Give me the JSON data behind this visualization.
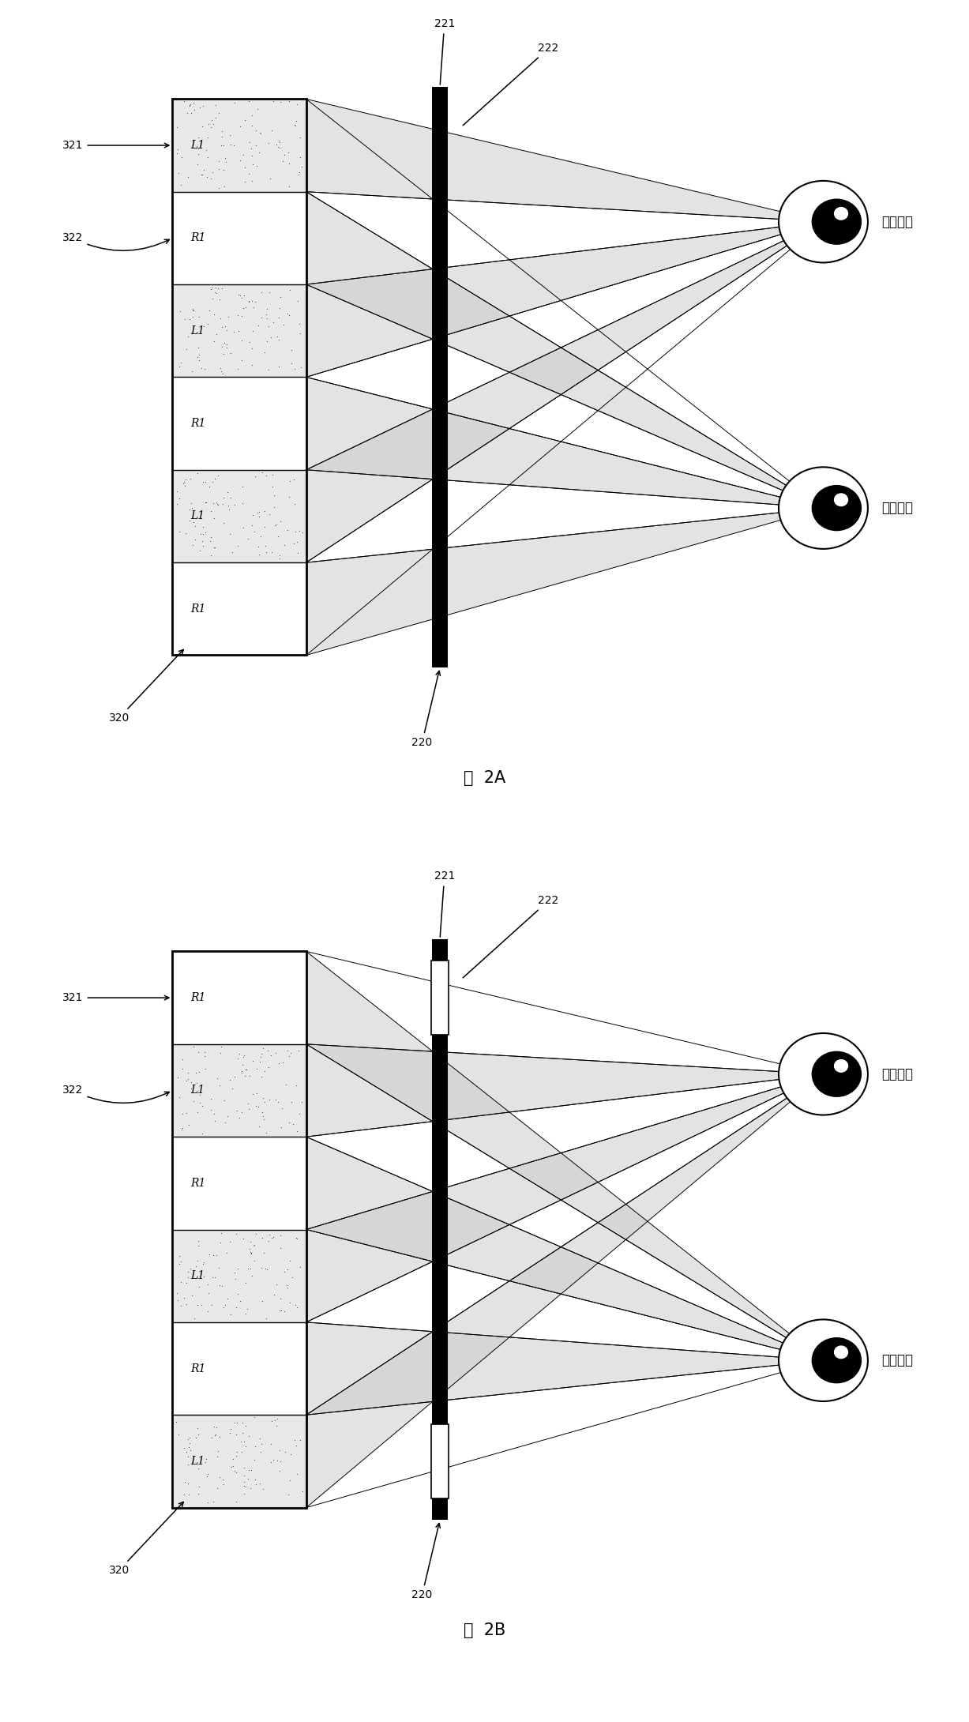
{
  "fig_width": 12.27,
  "fig_height": 21.8,
  "bg_color": "#ffffff",
  "diagrams": [
    {
      "title": "图  2A",
      "rows": [
        "L1",
        "R1",
        "L1",
        "R1",
        "L1",
        "R1"
      ],
      "shaded_rows": [
        0,
        2,
        4
      ],
      "barrier_open_rows": [],
      "eye_label_right": "第一右眼",
      "eye_label_left": "第一左眼"
    },
    {
      "title": "图  2B",
      "rows": [
        "R1",
        "L1",
        "R1",
        "L1",
        "R1",
        "L1"
      ],
      "shaded_rows": [
        1,
        3,
        5
      ],
      "barrier_open_rows": [
        0,
        5
      ],
      "eye_label_right": "第一右眼",
      "eye_label_left": "第一左眼"
    }
  ]
}
